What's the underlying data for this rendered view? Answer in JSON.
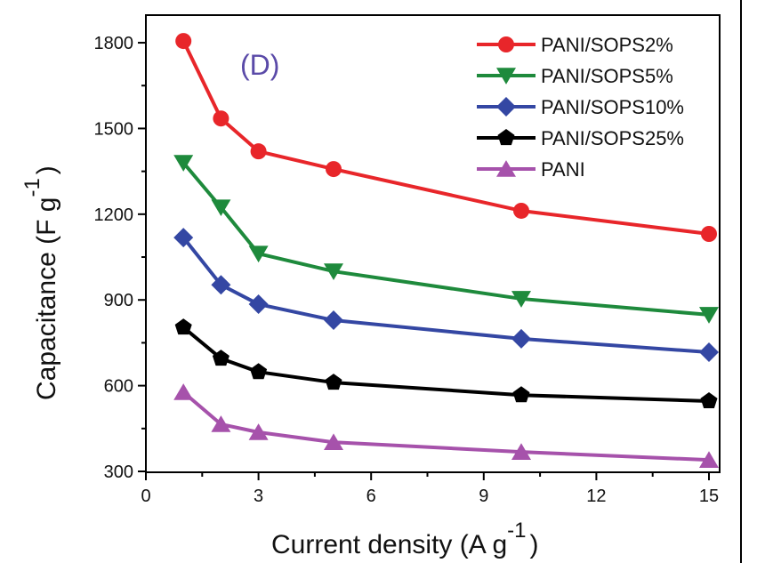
{
  "chart_data": {
    "type": "line",
    "title": "",
    "panel_label": "(D)",
    "xlabel": "Current density (A g",
    "xlabel_sup": "-1",
    "xlabel_close": ")",
    "ylabel": "Capacitance (F g",
    "ylabel_sup": "-1",
    "ylabel_close": ")",
    "xlim": [
      0,
      16
    ],
    "ylim": [
      300,
      1860
    ],
    "xticks": [
      0,
      3,
      6,
      9,
      12,
      15
    ],
    "xtick_labels": [
      "0",
      "3",
      "6",
      "9",
      "12",
      "15"
    ],
    "yticks": [
      300,
      600,
      900,
      1200,
      1500,
      1800
    ],
    "ytick_labels": [
      "300",
      "600",
      "900",
      "1200",
      "1500",
      "1800"
    ],
    "grid": false,
    "legend_position": "top-right",
    "x": [
      1,
      2,
      3,
      5,
      10,
      15
    ],
    "series": [
      {
        "name": "PANI/SOPS2%",
        "color": "#e8262a",
        "marker": "circle",
        "values": [
          1806,
          1535,
          1420,
          1358,
          1212,
          1131
        ]
      },
      {
        "name": "PANI/SOPS5%",
        "color": "#1e8a3c",
        "marker": "triangle-down",
        "values": [
          1380,
          1224,
          1062,
          1000,
          904,
          848
        ]
      },
      {
        "name": "PANI/SOPS10%",
        "color": "#3447a3",
        "marker": "diamond",
        "values": [
          1118,
          953,
          885,
          829,
          764,
          717
        ]
      },
      {
        "name": "PANI/SOPS25%",
        "color": "#000000",
        "marker": "pentagon",
        "values": [
          804,
          695,
          648,
          611,
          567,
          546
        ]
      },
      {
        "name": "PANI",
        "color": "#a652ab",
        "marker": "triangle-up",
        "values": [
          577,
          465,
          437,
          402,
          368,
          340
        ]
      }
    ]
  }
}
